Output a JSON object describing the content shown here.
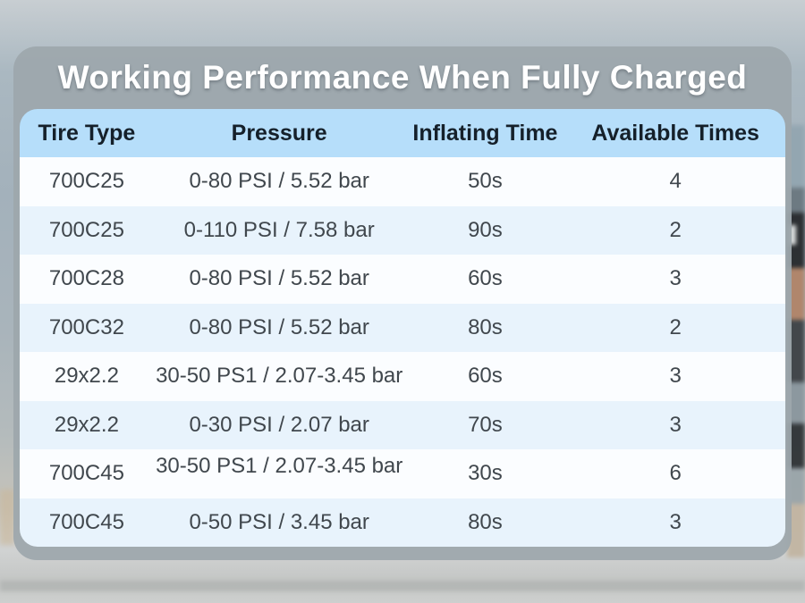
{
  "title": "Working Performance When Fully Charged",
  "table": {
    "headers": {
      "tire_type": "Tire Type",
      "pressure": "Pressure",
      "inflating_time": "Inflating Time",
      "available_times": "Available Times"
    },
    "rows": [
      {
        "tire_type": "700C25",
        "pressure": "0-80 PSI / 5.52 bar",
        "inflating_time": "50s",
        "available_times": "4"
      },
      {
        "tire_type": "700C25",
        "pressure": "0-110 PSI / 7.58 bar",
        "inflating_time": "90s",
        "available_times": "2"
      },
      {
        "tire_type": "700C28",
        "pressure": "0-80 PSI / 5.52 bar",
        "inflating_time": "60s",
        "available_times": "3"
      },
      {
        "tire_type": "700C32",
        "pressure": "0-80 PSI / 5.52 bar",
        "inflating_time": "80s",
        "available_times": "2"
      },
      {
        "tire_type": "29x2.2",
        "pressure": "30-50 PS1 / 2.07-3.45 bar",
        "inflating_time": "60s",
        "available_times": "3"
      },
      {
        "tire_type": "29x2.2",
        "pressure": "0-30 PSI / 2.07 bar",
        "inflating_time": "70s",
        "available_times": "3"
      },
      {
        "tire_type": "700C45",
        "pressure": "30-50 PS1 / 2.07-3.45 bar",
        "inflating_time": "30s",
        "available_times": "6"
      },
      {
        "tire_type": "700C45",
        "pressure": "0-50 PSI / 3.45 bar",
        "inflating_time": "80s",
        "available_times": "3"
      }
    ]
  },
  "chart_data": {
    "type": "table",
    "title": "Working Performance When Fully Charged",
    "columns": [
      "Tire Type",
      "Pressure",
      "Inflating Time",
      "Available Times"
    ],
    "rows": [
      [
        "700C25",
        "0-80 PSI / 5.52 bar",
        "50s",
        "4"
      ],
      [
        "700C25",
        "0-110 PSI / 7.58 bar",
        "90s",
        "2"
      ],
      [
        "700C28",
        "0-80 PSI / 5.52 bar",
        "60s",
        "3"
      ],
      [
        "700C32",
        "0-80 PSI / 5.52 bar",
        "80s",
        "2"
      ],
      [
        "29x2.2",
        "30-50 PS1 / 2.07-3.45 bar",
        "60s",
        "3"
      ],
      [
        "29x2.2",
        "0-30 PSI / 2.07 bar",
        "70s",
        "3"
      ],
      [
        "700C45",
        "30-50 PS1 / 2.07-3.45 bar",
        "30s",
        "6"
      ],
      [
        "700C45",
        "0-50 PSI / 3.45 bar",
        "80s",
        "3"
      ]
    ]
  },
  "colors": {
    "card_bg": "#9da7ac",
    "header_bg": "#b6defa",
    "row_white_bg": "#fbfdff",
    "row_blue_bg": "#e8f3fc",
    "title_text": "#ffffff",
    "header_text": "#15202a",
    "body_text": "#40474d"
  }
}
